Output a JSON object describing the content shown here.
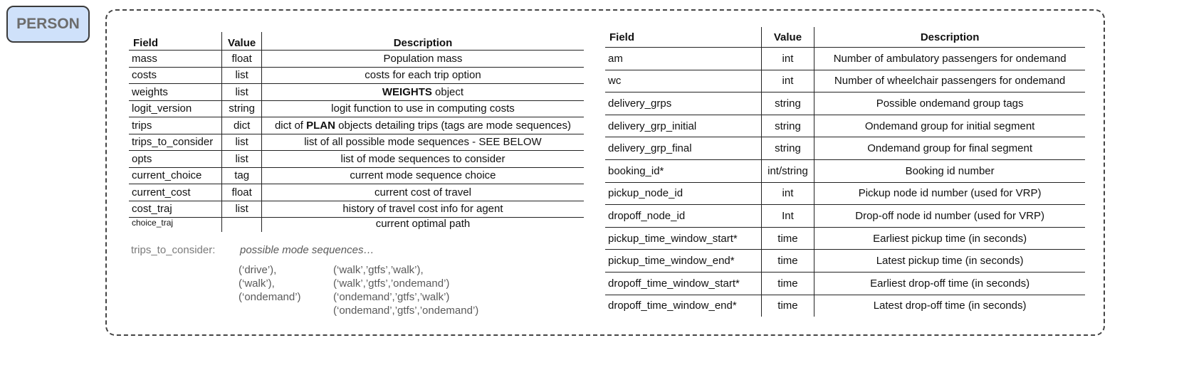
{
  "person_label": "PERSON",
  "left_table": {
    "headers": {
      "field": "Field",
      "value": "Value",
      "description": "Description"
    },
    "rows": [
      {
        "field": "mass",
        "value": "float",
        "desc_pre": "Population mass",
        "desc_bold": "",
        "desc_post": ""
      },
      {
        "field": "costs",
        "value": "list",
        "desc_pre": "costs for each trip option",
        "desc_bold": "",
        "desc_post": ""
      },
      {
        "field": "weights",
        "value": "list",
        "desc_pre": "",
        "desc_bold": "WEIGHTS",
        "desc_post": " object"
      },
      {
        "field": "logit_version",
        "value": "string",
        "desc_pre": "logit function to use in computing costs",
        "desc_bold": "",
        "desc_post": ""
      },
      {
        "field": "trips",
        "value": "dict",
        "desc_pre": "dict of ",
        "desc_bold": "PLAN",
        "desc_post": " objects detailing trips (tags are mode sequences)"
      },
      {
        "field": "trips_to_consider",
        "value": "list",
        "desc_pre": "list of all possible mode sequences - SEE BELOW",
        "desc_bold": "",
        "desc_post": ""
      },
      {
        "field": "opts",
        "value": "list",
        "desc_pre": "list of mode sequences to consider",
        "desc_bold": "",
        "desc_post": ""
      },
      {
        "field": "current_choice",
        "value": "tag",
        "desc_pre": "current mode sequence choice",
        "desc_bold": "",
        "desc_post": ""
      },
      {
        "field": "current_cost",
        "value": "float",
        "desc_pre": "current cost of travel",
        "desc_bold": "",
        "desc_post": ""
      },
      {
        "field": "cost_traj",
        "value": "list",
        "desc_pre": "history of travel cost info for agent",
        "desc_bold": "",
        "desc_post": ""
      },
      {
        "field": "choice_traj",
        "value": "",
        "desc_pre": "current optimal path",
        "desc_bold": "",
        "desc_post": ""
      }
    ]
  },
  "trips_to_consider": {
    "label": "trips_to_consider:",
    "subtitle": "possible mode sequences…",
    "column1": [
      "(‘drive’),",
      "(‘walk’),",
      "(‘ondemand’)"
    ],
    "column2": [
      "(‘walk’,’gtfs’,’walk’),",
      "(‘walk’,’gtfs’,’ondemand’)",
      "(‘ondemand’,’gtfs’,’walk’)",
      "(‘ondemand’,’gtfs’,’ondemand’)"
    ]
  },
  "right_table": {
    "headers": {
      "field": "Field",
      "value": "Value",
      "description": "Description"
    },
    "rows": [
      {
        "field": "am",
        "value": "int",
        "description": "Number of ambulatory passengers for ondemand"
      },
      {
        "field": "wc",
        "value": "int",
        "description": "Number of wheelchair passengers for ondemand"
      },
      {
        "field": "delivery_grps",
        "value": "string",
        "description": "Possible ondemand group tags"
      },
      {
        "field": "delivery_grp_initial",
        "value": "string",
        "description": "Ondemand group for initial segment"
      },
      {
        "field": "delivery_grp_final",
        "value": "string",
        "description": "Ondemand group for final segment"
      },
      {
        "field": "booking_id*",
        "value": "int/string",
        "description": "Booking id number"
      },
      {
        "field": "pickup_node_id",
        "value": "int",
        "description": "Pickup node id number (used for VRP)"
      },
      {
        "field": "dropoff_node_id",
        "value": "Int",
        "description": "Drop-off node id number (used for VRP)"
      },
      {
        "field": "pickup_time_window_start*",
        "value": "time",
        "description": "Earliest pickup time (in seconds)"
      },
      {
        "field": "pickup_time_window_end*",
        "value": "time",
        "description": "Latest pickup time (in seconds)"
      },
      {
        "field": "dropoff_time_window_start*",
        "value": "time",
        "description": "Earliest drop-off time (in seconds)"
      },
      {
        "field": "dropoff_time_window_end*",
        "value": "time",
        "description": "Latest drop-off time (in seconds)"
      }
    ]
  }
}
